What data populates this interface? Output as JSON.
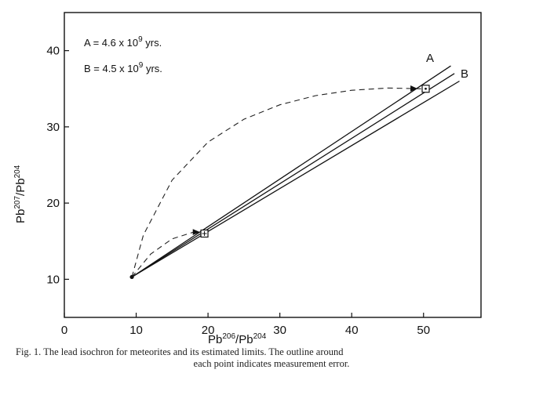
{
  "chart_data": {
    "type": "line",
    "xlabel": {
      "base1": "Pb",
      "sup1": "206",
      "sep": "/",
      "base2": "Pb",
      "sup2": "204"
    },
    "ylabel": {
      "base1": "Pb",
      "sup1": "207",
      "sep": "/",
      "base2": "Pb",
      "sup2": "204"
    },
    "xlim": [
      0,
      58
    ],
    "ylim": [
      5,
      45
    ],
    "xticks": [
      0,
      10,
      20,
      30,
      40,
      50
    ],
    "yticks": [
      10,
      20,
      30,
      40
    ],
    "xtick_labels": [
      "0",
      "10",
      "20",
      "30",
      "40",
      "50"
    ],
    "ytick_labels": [
      "10",
      "20",
      "30",
      "40"
    ],
    "grid": false,
    "series": [
      {
        "name": "A",
        "style": "solid",
        "x": [
          9.4,
          53.8
        ],
        "y": [
          10.3,
          38.0
        ]
      },
      {
        "name": "",
        "style": "solid",
        "x": [
          9.4,
          54.3
        ],
        "y": [
          10.3,
          37.0
        ]
      },
      {
        "name": "B",
        "style": "solid",
        "x": [
          9.4,
          55.0
        ],
        "y": [
          10.3,
          36.0
        ]
      }
    ],
    "points": [
      {
        "x": 9.4,
        "y": 10.3,
        "marker": "filled"
      },
      {
        "x": 19.5,
        "y": 16.0,
        "marker": "square-with-plus"
      },
      {
        "x": 50.3,
        "y": 35.0,
        "marker": "square-with-dot"
      }
    ],
    "dashed_paths": [
      {
        "x": [
          9.4,
          12,
          15,
          18,
          19.5
        ],
        "y": [
          10.3,
          13.3,
          15.3,
          16.2,
          16.2
        ]
      },
      {
        "x": [
          9.4,
          11,
          15,
          20,
          25,
          30,
          35,
          40,
          45,
          49.8
        ],
        "y": [
          10.3,
          15.8,
          23.0,
          28.0,
          31.0,
          32.9,
          34.1,
          34.8,
          35.1,
          35.0
        ]
      }
    ],
    "annotations": [
      {
        "label": "A",
        "value": "4.6 x 10",
        "exp": "9",
        "unit": " yrs."
      },
      {
        "label": "B",
        "value": "4.5 x 10",
        "exp": "9",
        "unit": " yrs."
      }
    ]
  },
  "caption": {
    "line1": "Fig. 1. The lead isochron for meteorites and its estimated limits. The outline around",
    "line2": "each point indicates measurement error."
  }
}
